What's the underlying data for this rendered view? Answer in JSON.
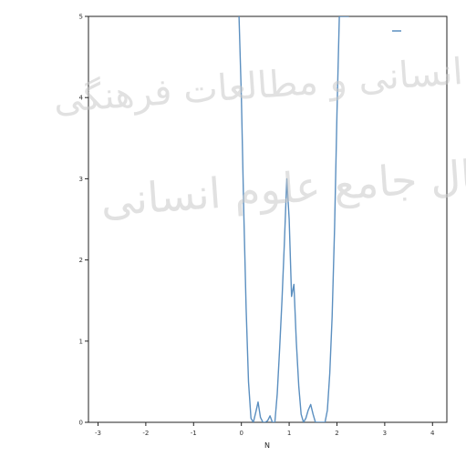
{
  "chart_data": {
    "type": "line",
    "xlabel": "N",
    "ylabel": "",
    "title": "",
    "xlim": [
      -3.2,
      4.3
    ],
    "ylim": [
      0,
      5
    ],
    "xticks": [
      -3,
      -2,
      -1,
      0,
      1,
      2,
      3,
      4
    ],
    "xtick_labels": [
      "-3",
      "-2",
      "-1",
      "0",
      "1",
      "2",
      "3",
      "4"
    ],
    "yticks": [
      0,
      1,
      2,
      3,
      4,
      5
    ],
    "ytick_labels": [
      "0",
      "1",
      "2",
      "3",
      "4",
      "5"
    ],
    "grid": false,
    "legend_position": "top-right",
    "series": [
      {
        "name": "",
        "color": "#5b8fc0",
        "x": [
          -0.05,
          0.0,
          0.05,
          0.1,
          0.15,
          0.2,
          0.25,
          0.3,
          0.35,
          0.4,
          0.45,
          0.5,
          0.55,
          0.6,
          0.65,
          0.7,
          0.75,
          0.8,
          0.85,
          0.9,
          0.95,
          1.0,
          1.05,
          1.1,
          1.15,
          1.2,
          1.25,
          1.3,
          1.35,
          1.4,
          1.45,
          1.5,
          1.55,
          1.6,
          1.65,
          1.7,
          1.75,
          1.8,
          1.85,
          1.9,
          1.95,
          2.0,
          2.05,
          2.1,
          2.15,
          2.2,
          2.25
        ],
        "y": [
          5.0,
          4.0,
          2.6,
          1.4,
          0.5,
          0.05,
          0.0,
          0.12,
          0.25,
          0.06,
          0.0,
          0.0,
          0.02,
          0.08,
          0.0,
          0.0,
          0.35,
          0.9,
          1.5,
          2.2,
          3.0,
          2.5,
          1.55,
          1.7,
          1.0,
          0.45,
          0.1,
          0.0,
          0.05,
          0.15,
          0.22,
          0.1,
          0.0,
          0.0,
          0.0,
          0.0,
          0.0,
          0.15,
          0.6,
          1.3,
          2.4,
          3.8,
          5.0,
          5.0,
          5.0,
          5.0,
          5.0
        ]
      }
    ]
  },
  "watermark": {
    "line1": "پژوهشگاه علوم انسانی و مطالعات فرهنگی",
    "line2": "پرتال جامع علوم انسانی"
  }
}
